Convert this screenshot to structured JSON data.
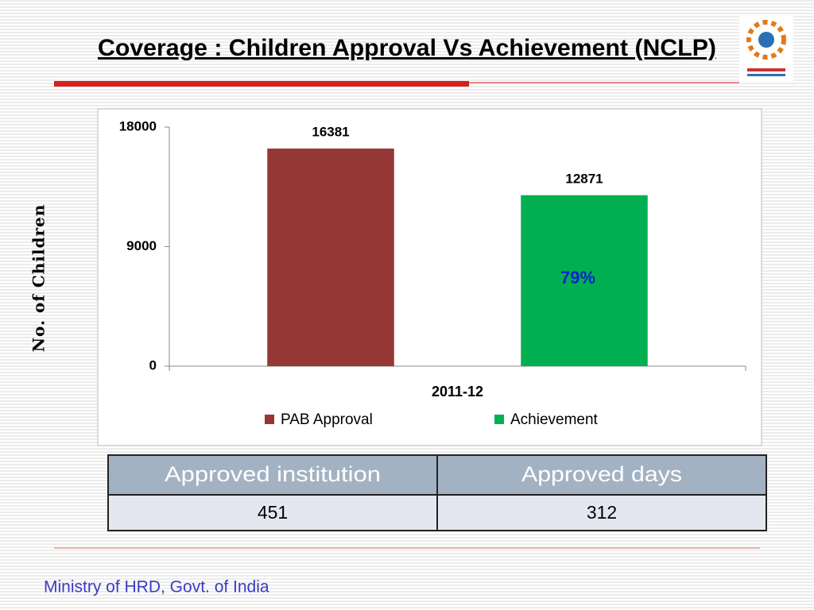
{
  "header": {
    "title": "Coverage : Children Approval Vs Achievement (NCLP)"
  },
  "chart_data": {
    "type": "bar",
    "categories": [
      "2011-12"
    ],
    "series": [
      {
        "name": "PAB Approval",
        "color": "#953735",
        "values": [
          16381
        ]
      },
      {
        "name": "Achievement",
        "color": "#00b050",
        "values": [
          12871
        ]
      }
    ],
    "ylabel": "No. of Children",
    "ylim": [
      0,
      18000
    ],
    "yticks": [
      0,
      9000,
      18000
    ],
    "annotation": "79%",
    "legend": "bottom"
  },
  "table": {
    "header": [
      "Approved institution",
      "Approved days"
    ],
    "rows": [
      [
        "451",
        "312"
      ]
    ]
  },
  "footer": "Ministry of HRD, Govt. of India"
}
